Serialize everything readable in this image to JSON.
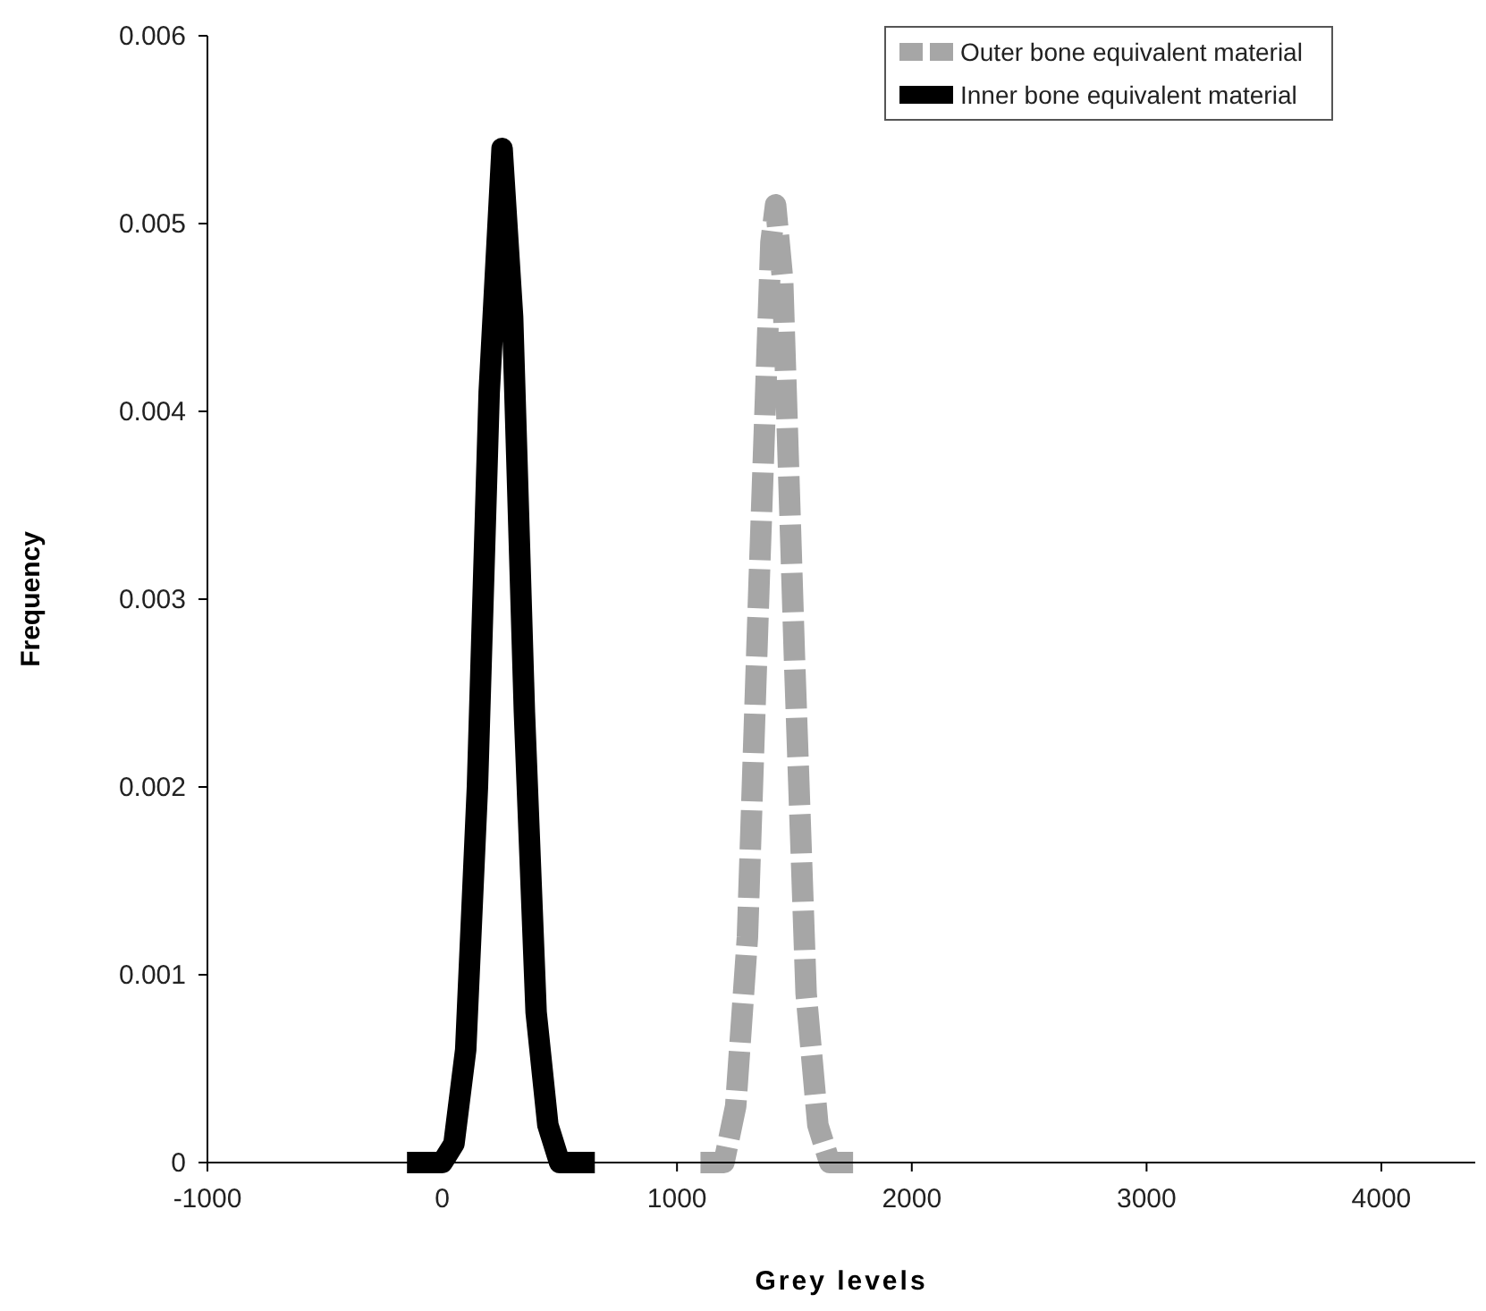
{
  "chart_data": {
    "type": "line",
    "xlabel": "Grey levels",
    "ylabel": "Frequency",
    "xlim": [
      -1000,
      4400
    ],
    "xticks": [
      -1000,
      0,
      1000,
      2000,
      3000,
      4000
    ],
    "ylim": [
      0,
      0.006
    ],
    "yticks": [
      0,
      0.001,
      0.002,
      0.003,
      0.004,
      0.005,
      0.006
    ],
    "grid": false,
    "legend": "top right",
    "marker": "none",
    "series": [
      {
        "name": "Outer bone equivalent material",
        "color": "#a6a6a6",
        "line_style": "dashed",
        "x": [
          1100,
          1150,
          1200,
          1250,
          1300,
          1350,
          1400,
          1420,
          1450,
          1500,
          1550,
          1600,
          1650,
          1700,
          1750
        ],
        "values": [
          0,
          0,
          0,
          0.0003,
          0.0012,
          0.0031,
          0.0049,
          0.0051,
          0.0047,
          0.0027,
          0.0009,
          0.0002,
          0,
          0,
          0
        ]
      },
      {
        "name": "Inner bone equivalent material",
        "color": "#000000",
        "line_style": "solid",
        "x": [
          -150,
          -100,
          -50,
          0,
          50,
          100,
          150,
          200,
          255,
          300,
          350,
          400,
          450,
          500,
          550,
          600,
          650
        ],
        "values": [
          0,
          0,
          0,
          0,
          0.0001,
          0.0006,
          0.002,
          0.0041,
          0.0054,
          0.0045,
          0.0024,
          0.0008,
          0.0002,
          0,
          0,
          0,
          0
        ]
      }
    ]
  }
}
